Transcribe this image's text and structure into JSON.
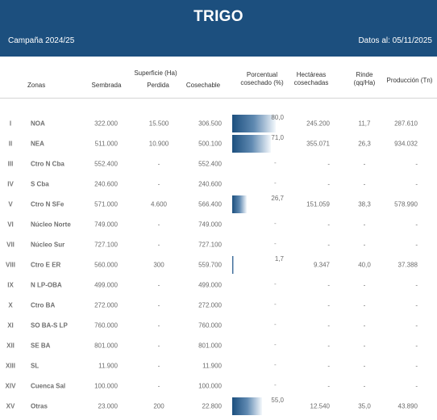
{
  "header": {
    "title": "TRIGO",
    "campaign": "Campaña 2024/25",
    "date_label": "Datos al: 05/11/2025"
  },
  "columns": {
    "zonas": "Zonas",
    "superficie_group": "Superficie (Ha)",
    "sembrada": "Sembrada",
    "perdida": "Perdida",
    "cosechable": "Cosechable",
    "porcentual_line1": "Porcentual",
    "porcentual_line2": "cosechado (%)",
    "hectareas_line1": "Hectáreas",
    "hectareas_line2": "cosechadas",
    "rinde_line1": "Rinde",
    "rinde_line2": "(qq/Ha)",
    "produccion": "Producción (Tn)"
  },
  "rows": [
    {
      "roman": "I",
      "zona": "NOA",
      "sembrada": "322.000",
      "perdida": "15.500",
      "cosechable": "306.500",
      "pct": 80,
      "pct_label": "80,0",
      "hcos": "245.200",
      "rinde": "11,7",
      "prod": "287.610"
    },
    {
      "roman": "II",
      "zona": "NEA",
      "sembrada": "511.000",
      "perdida": "10.900",
      "cosechable": "500.100",
      "pct": 71,
      "pct_label": "71,0",
      "hcos": "355.071",
      "rinde": "26,3",
      "prod": "934.032"
    },
    {
      "roman": "III",
      "zona": "Ctro N Cba",
      "sembrada": "552.400",
      "perdida": "-",
      "cosechable": "552.400",
      "pct": 0,
      "pct_label": "-",
      "hcos": "-",
      "rinde": "-",
      "prod": "-"
    },
    {
      "roman": "IV",
      "zona": "S Cba",
      "sembrada": "240.600",
      "perdida": "-",
      "cosechable": "240.600",
      "pct": 0,
      "pct_label": "-",
      "hcos": "-",
      "rinde": "-",
      "prod": "-"
    },
    {
      "roman": "V",
      "zona": "Ctro N SFe",
      "sembrada": "571.000",
      "perdida": "4.600",
      "cosechable": "566.400",
      "pct": 26.7,
      "pct_label": "26,7",
      "hcos": "151.059",
      "rinde": "38,3",
      "prod": "578.990"
    },
    {
      "roman": "VI",
      "zona": "Núcleo Norte",
      "sembrada": "749.000",
      "perdida": "-",
      "cosechable": "749.000",
      "pct": 0,
      "pct_label": "-",
      "hcos": "-",
      "rinde": "-",
      "prod": "-"
    },
    {
      "roman": "VII",
      "zona": "Núcleo Sur",
      "sembrada": "727.100",
      "perdida": "-",
      "cosechable": "727.100",
      "pct": 0,
      "pct_label": "-",
      "hcos": "-",
      "rinde": "-",
      "prod": "-"
    },
    {
      "roman": "VIII",
      "zona": "Ctro E ER",
      "sembrada": "560.000",
      "perdida": "300",
      "cosechable": "559.700",
      "pct": 1.7,
      "pct_label": "1,7",
      "hcos": "9.347",
      "rinde": "40,0",
      "prod": "37.388"
    },
    {
      "roman": "IX",
      "zona": "N LP-OBA",
      "sembrada": "499.000",
      "perdida": "-",
      "cosechable": "499.000",
      "pct": 0,
      "pct_label": "-",
      "hcos": "-",
      "rinde": "-",
      "prod": "-"
    },
    {
      "roman": "X",
      "zona": "Ctro BA",
      "sembrada": "272.000",
      "perdida": "-",
      "cosechable": "272.000",
      "pct": 0,
      "pct_label": "-",
      "hcos": "-",
      "rinde": "-",
      "prod": "-"
    },
    {
      "roman": "XI",
      "zona": "SO BA-S LP",
      "sembrada": "760.000",
      "perdida": "-",
      "cosechable": "760.000",
      "pct": 0,
      "pct_label": "-",
      "hcos": "-",
      "rinde": "-",
      "prod": "-"
    },
    {
      "roman": "XII",
      "zona": "SE BA",
      "sembrada": "801.000",
      "perdida": "-",
      "cosechable": "801.000",
      "pct": 0,
      "pct_label": "-",
      "hcos": "-",
      "rinde": "-",
      "prod": "-"
    },
    {
      "roman": "XIII",
      "zona": "SL",
      "sembrada": "11.900",
      "perdida": "-",
      "cosechable": "11.900",
      "pct": 0,
      "pct_label": "-",
      "hcos": "-",
      "rinde": "-",
      "prod": "-"
    },
    {
      "roman": "XIV",
      "zona": "Cuenca Sal",
      "sembrada": "100.000",
      "perdida": "-",
      "cosechable": "100.000",
      "pct": 0,
      "pct_label": "-",
      "hcos": "-",
      "rinde": "-",
      "prod": "-"
    },
    {
      "roman": "XV",
      "zona": "Otras",
      "sembrada": "23.000",
      "perdida": "200",
      "cosechable": "22.800",
      "pct": 55,
      "pct_label": "55,0",
      "hcos": "12.540",
      "rinde": "35,0",
      "prod": "43.890"
    }
  ]
}
